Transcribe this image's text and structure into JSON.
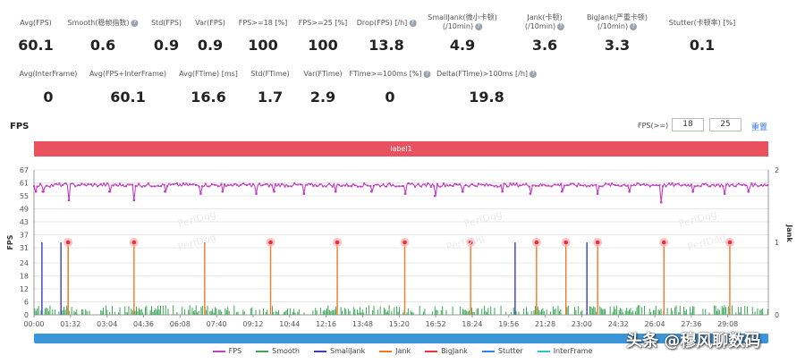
{
  "stats_row1": [
    {
      "label": "Avg(FPS)",
      "value": "60.1",
      "help": false
    },
    {
      "label": "Smooth(稳帧指数)",
      "value": "0.6",
      "help": true
    },
    {
      "label": "Std(FPS)",
      "value": "0.9",
      "help": false
    },
    {
      "label": "Var(FPS)",
      "value": "0.9",
      "help": false
    },
    {
      "label": "FPS>=18 [%]",
      "value": "100",
      "help": false
    },
    {
      "label": "FPS>=25 [%]",
      "value": "100",
      "help": false
    },
    {
      "label": "Drop(FPS) [/h]",
      "value": "13.8",
      "help": true
    },
    {
      "label": "SmallJank(微小卡顿)\n(/10min)",
      "value": "4.9",
      "help": true
    },
    {
      "label": "Jank(卡顿)\n(/10min)",
      "value": "3.6",
      "help": true
    },
    {
      "label": "BigJank(严重卡顿)\n(/10min)",
      "value": "3.3",
      "help": true
    },
    {
      "label": "Stutter(卡顿率) [%]",
      "value": "0.1",
      "help": false
    }
  ],
  "stats_row2": [
    {
      "label": "Avg(InterFrame)",
      "value": "0",
      "help": false
    },
    {
      "label": "Avg(FPS+InterFrame)",
      "value": "60.1",
      "help": false
    },
    {
      "label": "Avg(FTime) [ms]",
      "value": "16.6",
      "help": false
    },
    {
      "label": "Std(FTime)",
      "value": "1.7",
      "help": false
    },
    {
      "label": "Var(FTime)",
      "value": "2.9",
      "help": false
    },
    {
      "label": "FTime>=100ms [%]",
      "value": "0",
      "help": true
    },
    {
      "label": "Delta(FTime)>100ms [/h]",
      "value": "19.8",
      "help": true
    }
  ],
  "panel": {
    "title": "FPS",
    "threshold_label": "FPS(>=)",
    "threshold_1": "18",
    "threshold_2": "25",
    "reset_label": "重置",
    "label_bar": "label1"
  },
  "colors": {
    "fps": "#c13fc1",
    "smooth": "#3aa655",
    "smalljank": "#3b3bc8",
    "jank": "#f07a26",
    "bigjank": "#e8323c",
    "stutter": "#2e86de",
    "interframe": "#2ec4d6",
    "label_bar": "#e9515f"
  },
  "chart_data": {
    "type": "line",
    "title": "FPS",
    "ylabel": "FPS",
    "ylabel_right": "Jank",
    "ylim": [
      0,
      67
    ],
    "ylim_right": [
      0,
      2
    ],
    "yticks": [
      "0",
      "6",
      "12",
      "18",
      "24",
      "31",
      "37",
      "43",
      "49",
      "55",
      "61",
      "67"
    ],
    "yticks_right": [
      "0",
      "1",
      "2"
    ],
    "xlim_seconds": [
      0,
      1850
    ],
    "xticks": [
      "00:00",
      "01:32",
      "03:04",
      "04:36",
      "06:08",
      "07:40",
      "09:12",
      "10:44",
      "12:16",
      "13:48",
      "15:20",
      "16:52",
      "18:24",
      "19:56",
      "21:28",
      "23:00",
      "24:32",
      "26:04",
      "27:36",
      "29:08"
    ],
    "fps_typical": 60,
    "fps_dips": [
      {
        "t": 5,
        "v": 57
      },
      {
        "t": 22,
        "v": 57
      },
      {
        "t": 88,
        "v": 53
      },
      {
        "t": 190,
        "v": 57
      },
      {
        "t": 252,
        "v": 53
      },
      {
        "t": 330,
        "v": 57
      },
      {
        "t": 420,
        "v": 56
      },
      {
        "t": 475,
        "v": 57
      },
      {
        "t": 560,
        "v": 56
      },
      {
        "t": 605,
        "v": 57
      },
      {
        "t": 680,
        "v": 56
      },
      {
        "t": 760,
        "v": 57
      },
      {
        "t": 850,
        "v": 57
      },
      {
        "t": 935,
        "v": 56
      },
      {
        "t": 1010,
        "v": 55
      },
      {
        "t": 1080,
        "v": 57
      },
      {
        "t": 1180,
        "v": 57
      },
      {
        "t": 1250,
        "v": 56
      },
      {
        "t": 1330,
        "v": 57
      },
      {
        "t": 1420,
        "v": 56
      },
      {
        "t": 1500,
        "v": 57
      },
      {
        "t": 1580,
        "v": 52
      },
      {
        "t": 1660,
        "v": 57
      },
      {
        "t": 1740,
        "v": 56
      },
      {
        "t": 1800,
        "v": 57
      }
    ],
    "smalljank_times": [
      20,
      68,
      1212,
      1393
    ],
    "jank_times": [
      86,
      430
    ],
    "bigjank_times": [
      86,
      252,
      596,
      764,
      934,
      1100,
      1266,
      1340,
      1420,
      1587,
      1753
    ],
    "legend": [
      "FPS",
      "Smooth",
      "SmallJank",
      "Jank",
      "BigJank",
      "Stutter",
      "InterFrame"
    ]
  },
  "watermark": "头条 @穆风聊数码"
}
